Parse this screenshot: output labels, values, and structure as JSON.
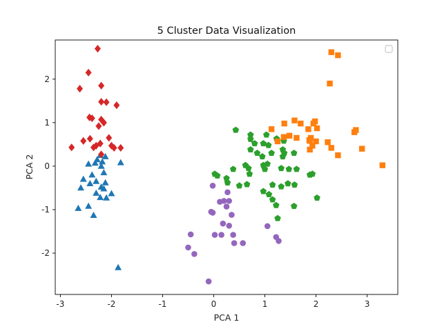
{
  "chart_data": {
    "type": "scatter",
    "title": "5 Cluster Data Visualization",
    "xlabel": "PCA 1",
    "ylabel": "PCA 2",
    "xlim": [
      -3.1,
      3.6
    ],
    "ylim": [
      -2.95,
      2.9
    ],
    "xticks": [
      -3,
      -2,
      -1,
      0,
      1,
      2,
      3
    ],
    "yticks": [
      -2,
      -1,
      0,
      1,
      2
    ],
    "grid": false,
    "legend": {
      "placement": "top-right",
      "entries": []
    },
    "series": [
      {
        "marker": "triangle",
        "color": "#1f77b4",
        "points": [
          [
            -2.45,
            0.05
          ],
          [
            -2.32,
            0.07
          ],
          [
            -2.22,
            0.25
          ],
          [
            -2.12,
            0.22
          ],
          [
            -2.28,
            0.15
          ],
          [
            -2.18,
            0.1
          ],
          [
            -2.2,
            0.0
          ],
          [
            -1.82,
            0.08
          ],
          [
            -2.15,
            -0.15
          ],
          [
            -2.38,
            -0.2
          ],
          [
            -2.55,
            -0.3
          ],
          [
            -2.3,
            -0.35
          ],
          [
            -2.42,
            -0.4
          ],
          [
            -2.12,
            -0.38
          ],
          [
            -2.2,
            -0.48
          ],
          [
            -2.6,
            -0.5
          ],
          [
            -2.15,
            -0.52
          ],
          [
            -2.3,
            -0.62
          ],
          [
            -2.0,
            -0.63
          ],
          [
            -2.22,
            -0.72
          ],
          [
            -2.1,
            -0.73
          ],
          [
            -2.45,
            -0.92
          ],
          [
            -2.65,
            -0.97
          ],
          [
            -2.35,
            -1.13
          ],
          [
            -1.87,
            -2.33
          ]
        ]
      },
      {
        "marker": "circle",
        "color": "#9467bd",
        "points": [
          [
            -0.02,
            -0.45
          ],
          [
            0.27,
            -0.6
          ],
          [
            0.2,
            -0.8
          ],
          [
            0.3,
            -0.8
          ],
          [
            0.12,
            -0.82
          ],
          [
            0.25,
            -0.93
          ],
          [
            -0.05,
            -1.05
          ],
          [
            -0.02,
            -1.07
          ],
          [
            0.35,
            -1.12
          ],
          [
            0.18,
            -1.32
          ],
          [
            0.3,
            -1.37
          ],
          [
            -0.45,
            -1.57
          ],
          [
            0.02,
            -1.58
          ],
          [
            0.15,
            -1.58
          ],
          [
            0.38,
            -1.58
          ],
          [
            0.4,
            -1.77
          ],
          [
            0.57,
            -1.77
          ],
          [
            -0.5,
            -1.87
          ],
          [
            -0.38,
            -2.02
          ],
          [
            -0.1,
            -2.65
          ],
          [
            1.05,
            -1.38
          ],
          [
            1.22,
            -1.63
          ],
          [
            1.27,
            -1.72
          ]
        ]
      },
      {
        "marker": "pentagon",
        "color": "#2ca02c",
        "points": [
          [
            0.43,
            0.83
          ],
          [
            0.72,
            0.72
          ],
          [
            1.03,
            0.72
          ],
          [
            1.23,
            0.63
          ],
          [
            1.37,
            0.58
          ],
          [
            0.72,
            0.62
          ],
          [
            0.8,
            0.52
          ],
          [
            0.97,
            0.52
          ],
          [
            1.07,
            0.48
          ],
          [
            0.72,
            0.38
          ],
          [
            1.35,
            0.38
          ],
          [
            0.85,
            0.3
          ],
          [
            1.13,
            0.3
          ],
          [
            1.38,
            0.3
          ],
          [
            1.57,
            0.3
          ],
          [
            0.95,
            0.22
          ],
          [
            1.35,
            0.22
          ],
          [
            0.02,
            -0.18
          ],
          [
            0.07,
            -0.22
          ],
          [
            0.25,
            -0.28
          ],
          [
            0.27,
            -0.38
          ],
          [
            0.38,
            -0.07
          ],
          [
            0.62,
            0.02
          ],
          [
            0.68,
            -0.05
          ],
          [
            0.97,
            0.02
          ],
          [
            1.05,
            0.05
          ],
          [
            1.0,
            -0.07
          ],
          [
            1.32,
            -0.05
          ],
          [
            1.47,
            -0.07
          ],
          [
            1.62,
            -0.07
          ],
          [
            1.93,
            -0.18
          ],
          [
            1.88,
            -0.2
          ],
          [
            0.7,
            -0.18
          ],
          [
            0.65,
            -0.42
          ],
          [
            0.5,
            -0.45
          ],
          [
            1.15,
            -0.43
          ],
          [
            1.32,
            -0.47
          ],
          [
            1.45,
            -0.4
          ],
          [
            1.58,
            -0.43
          ],
          [
            0.97,
            -0.58
          ],
          [
            1.08,
            -0.65
          ],
          [
            1.15,
            -0.77
          ],
          [
            1.22,
            -0.9
          ],
          [
            1.57,
            -0.92
          ],
          [
            1.25,
            -1.2
          ],
          [
            2.02,
            -0.73
          ]
        ]
      },
      {
        "marker": "square",
        "color": "#ff7f0e",
        "points": [
          [
            2.3,
            2.62
          ],
          [
            2.43,
            2.55
          ],
          [
            2.27,
            1.9
          ],
          [
            1.58,
            1.05
          ],
          [
            1.38,
            0.98
          ],
          [
            1.7,
            0.98
          ],
          [
            1.95,
            0.98
          ],
          [
            1.98,
            1.03
          ],
          [
            2.02,
            0.87
          ],
          [
            1.13,
            0.85
          ],
          [
            1.85,
            0.85
          ],
          [
            2.78,
            0.83
          ],
          [
            2.75,
            0.78
          ],
          [
            1.48,
            0.7
          ],
          [
            1.37,
            0.67
          ],
          [
            1.62,
            0.65
          ],
          [
            1.9,
            0.65
          ],
          [
            1.88,
            0.58
          ],
          [
            1.87,
            0.6
          ],
          [
            2.0,
            0.57
          ],
          [
            2.23,
            0.55
          ],
          [
            1.25,
            0.57
          ],
          [
            1.93,
            0.47
          ],
          [
            1.88,
            0.38
          ],
          [
            2.3,
            0.42
          ],
          [
            2.9,
            0.4
          ],
          [
            2.43,
            0.25
          ],
          [
            3.3,
            0.02
          ]
        ]
      },
      {
        "marker": "diamond",
        "color": "#d62728",
        "points": [
          [
            -2.27,
            2.7
          ],
          [
            -2.45,
            2.15
          ],
          [
            -2.62,
            1.78
          ],
          [
            -2.2,
            1.85
          ],
          [
            -2.2,
            1.48
          ],
          [
            -2.1,
            1.47
          ],
          [
            -1.9,
            1.4
          ],
          [
            -2.43,
            1.12
          ],
          [
            -2.38,
            1.1
          ],
          [
            -2.2,
            1.07
          ],
          [
            -2.15,
            1.0
          ],
          [
            -2.25,
            0.92
          ],
          [
            -2.42,
            0.63
          ],
          [
            -2.05,
            0.65
          ],
          [
            -2.55,
            0.58
          ],
          [
            -2.22,
            0.52
          ],
          [
            -2.3,
            0.47
          ],
          [
            -2.0,
            0.47
          ],
          [
            -2.35,
            0.43
          ],
          [
            -1.95,
            0.42
          ],
          [
            -1.82,
            0.42
          ],
          [
            -2.78,
            0.43
          ],
          [
            -2.2,
            0.27
          ]
        ]
      }
    ]
  }
}
